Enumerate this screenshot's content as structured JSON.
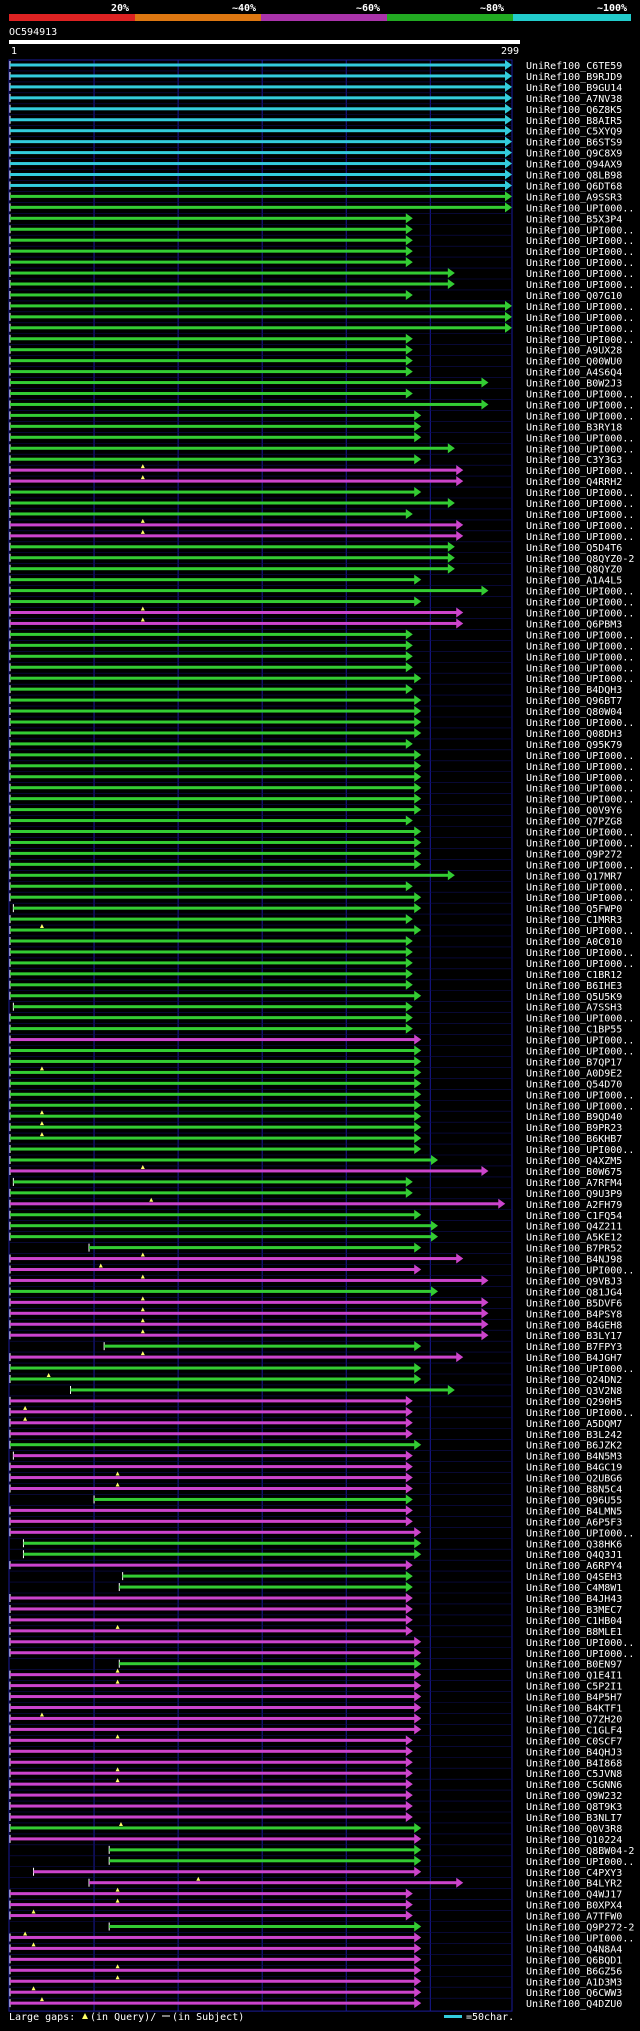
{
  "query_id": "OC594913",
  "ruler": {
    "start": "1",
    "end": "299"
  },
  "scale_ticks": [
    "20%",
    "~40%",
    "~60%",
    "~80%",
    "~100%"
  ],
  "identity_bands": [
    {
      "color": "#dd2222"
    },
    {
      "color": "#dd7711"
    },
    {
      "color": "#aa33aa"
    },
    {
      "color": "#22aa22"
    },
    {
      "color": "#22cccc"
    }
  ],
  "legend": {
    "gaps_label": "Large gaps:",
    "in_query": "(in Query)/",
    "in_subject": "(in Subject)",
    "scale_text": "=50char."
  },
  "colors": {
    "cyan": "#33ccdd",
    "green": "#33cc33",
    "magenta": "#cc44cc",
    "grid": "#1a1a99"
  },
  "hits": [
    {
      "label": "UniRef100_C6TE59",
      "color": "cyan",
      "s": 1,
      "e": 299
    },
    {
      "label": "UniRef100_B9RJD9",
      "color": "cyan",
      "s": 1,
      "e": 299
    },
    {
      "label": "UniRef100_B9GU14",
      "color": "cyan",
      "s": 1,
      "e": 299
    },
    {
      "label": "UniRef100_A7NV38",
      "color": "cyan",
      "s": 1,
      "e": 299
    },
    {
      "label": "UniRef100_Q6Z8K5",
      "color": "cyan",
      "s": 1,
      "e": 299
    },
    {
      "label": "UniRef100_B8AIR5",
      "color": "cyan",
      "s": 1,
      "e": 299
    },
    {
      "label": "UniRef100_C5XYQ9",
      "color": "cyan",
      "s": 1,
      "e": 299
    },
    {
      "label": "UniRef100_B6STS9",
      "color": "cyan",
      "s": 1,
      "e": 299
    },
    {
      "label": "UniRef100_Q9C8X9",
      "color": "cyan",
      "s": 1,
      "e": 299
    },
    {
      "label": "UniRef100_Q94AX9",
      "color": "cyan",
      "s": 1,
      "e": 299
    },
    {
      "label": "UniRef100_Q8LB98",
      "color": "cyan",
      "s": 1,
      "e": 299
    },
    {
      "label": "UniRef100_Q6DT68",
      "color": "cyan",
      "s": 1,
      "e": 299
    },
    {
      "label": "UniRef100_A9SSR3",
      "color": "green",
      "s": 1,
      "e": 299
    },
    {
      "label": "UniRef100_UPI000..",
      "color": "green",
      "s": 1,
      "e": 299
    },
    {
      "label": "UniRef100_B5X3P4",
      "color": "green",
      "s": 1,
      "e": 240
    },
    {
      "label": "UniRef100_UPI000..",
      "color": "green",
      "s": 1,
      "e": 240
    },
    {
      "label": "UniRef100_UPI000..",
      "color": "green",
      "s": 1,
      "e": 240
    },
    {
      "label": "UniRef100_UPI000..",
      "color": "green",
      "s": 1,
      "e": 240
    },
    {
      "label": "UniRef100_UPI000..",
      "color": "green",
      "s": 1,
      "e": 240
    },
    {
      "label": "UniRef100_UPI000..",
      "color": "green",
      "s": 1,
      "e": 265
    },
    {
      "label": "UniRef100_UPI000..",
      "color": "green",
      "s": 1,
      "e": 265
    },
    {
      "label": "UniRef100_Q07G10",
      "color": "green",
      "s": 1,
      "e": 240
    },
    {
      "label": "UniRef100_UPI000..",
      "color": "green",
      "s": 1,
      "e": 299
    },
    {
      "label": "UniRef100_UPI000..",
      "color": "green",
      "s": 1,
      "e": 299
    },
    {
      "label": "UniRef100_UPI000..",
      "color": "green",
      "s": 1,
      "e": 299
    },
    {
      "label": "UniRef100_UPI000..",
      "color": "green",
      "s": 1,
      "e": 240
    },
    {
      "label": "UniRef100_A9UX28",
      "color": "green",
      "s": 1,
      "e": 240
    },
    {
      "label": "UniRef100_Q00WU0",
      "color": "green",
      "s": 1,
      "e": 240
    },
    {
      "label": "UniRef100_A4S6Q4",
      "color": "green",
      "s": 1,
      "e": 240
    },
    {
      "label": "UniRef100_B0W2J3",
      "color": "green",
      "s": 1,
      "e": 285
    },
    {
      "label": "UniRef100_UPI000..",
      "color": "green",
      "s": 1,
      "e": 240
    },
    {
      "label": "UniRef100_UPI000..",
      "color": "green",
      "s": 1,
      "e": 285
    },
    {
      "label": "UniRef100_UPI000..",
      "color": "green",
      "s": 1,
      "e": 245
    },
    {
      "label": "UniRef100_B3RY18",
      "color": "green",
      "s": 1,
      "e": 245
    },
    {
      "label": "UniRef100_UPI000..",
      "color": "green",
      "s": 1,
      "e": 245
    },
    {
      "label": "UniRef100_UPI000..",
      "color": "green",
      "s": 1,
      "e": 265
    },
    {
      "label": "UniRef100_C3Y3G3",
      "color": "green",
      "s": 1,
      "e": 245
    },
    {
      "label": "UniRef100_UPI000..",
      "color": "magenta",
      "s": 1,
      "e": 270,
      "gap": 80
    },
    {
      "label": "UniRef100_Q4RRH2",
      "color": "magenta",
      "s": 1,
      "e": 270,
      "gap": 80
    },
    {
      "label": "UniRef100_UPI000..",
      "color": "green",
      "s": 1,
      "e": 245
    },
    {
      "label": "UniRef100_UPI000..",
      "color": "green",
      "s": 1,
      "e": 265
    },
    {
      "label": "UniRef100_UPI000..",
      "color": "green",
      "s": 1,
      "e": 240
    },
    {
      "label": "UniRef100_UPI000..",
      "color": "magenta",
      "s": 1,
      "e": 270,
      "gap": 80
    },
    {
      "label": "UniRef100_UPI000..",
      "color": "magenta",
      "s": 1,
      "e": 270,
      "gap": 80
    },
    {
      "label": "UniRef100_Q5D4T6",
      "color": "green",
      "s": 1,
      "e": 265
    },
    {
      "label": "UniRef100_Q8QYZ0-2",
      "color": "green",
      "s": 1,
      "e": 265
    },
    {
      "label": "UniRef100_Q8QYZ0",
      "color": "green",
      "s": 1,
      "e": 265
    },
    {
      "label": "UniRef100_A1A4L5",
      "color": "green",
      "s": 1,
      "e": 245
    },
    {
      "label": "UniRef100_UPI000..",
      "color": "green",
      "s": 1,
      "e": 285
    },
    {
      "label": "UniRef100_UPI000..",
      "color": "green",
      "s": 1,
      "e": 245
    },
    {
      "label": "UniRef100_UPI000..",
      "color": "magenta",
      "s": 1,
      "e": 270,
      "gap": 80
    },
    {
      "label": "UniRef100_Q6PBM3",
      "color": "magenta",
      "s": 1,
      "e": 270,
      "gap": 80
    },
    {
      "label": "UniRef100_UPI000..",
      "color": "green",
      "s": 1,
      "e": 240
    },
    {
      "label": "UniRef100_UPI000..",
      "color": "green",
      "s": 1,
      "e": 240
    },
    {
      "label": "UniRef100_UPI000..",
      "color": "green",
      "s": 1,
      "e": 240
    },
    {
      "label": "UniRef100_UPI000..",
      "color": "green",
      "s": 1,
      "e": 240
    },
    {
      "label": "UniRef100_UPI000..",
      "color": "green",
      "s": 1,
      "e": 245
    },
    {
      "label": "UniRef100_B4DQH3",
      "color": "green",
      "s": 1,
      "e": 240
    },
    {
      "label": "UniRef100_Q96BT7",
      "color": "green",
      "s": 1,
      "e": 245
    },
    {
      "label": "UniRef100_Q80W04",
      "color": "green",
      "s": 1,
      "e": 245
    },
    {
      "label": "UniRef100_UPI000..",
      "color": "green",
      "s": 1,
      "e": 245
    },
    {
      "label": "UniRef100_Q08DH3",
      "color": "green",
      "s": 1,
      "e": 245
    },
    {
      "label": "UniRef100_Q95K79",
      "color": "green",
      "s": 1,
      "e": 240
    },
    {
      "label": "UniRef100_UPI000..",
      "color": "green",
      "s": 1,
      "e": 245
    },
    {
      "label": "UniRef100_UPI000..",
      "color": "green",
      "s": 1,
      "e": 245
    },
    {
      "label": "UniRef100_UPI000..",
      "color": "green",
      "s": 1,
      "e": 245
    },
    {
      "label": "UniRef100_UPI000..",
      "color": "green",
      "s": 1,
      "e": 245
    },
    {
      "label": "UniRef100_UPI000..",
      "color": "green",
      "s": 1,
      "e": 245
    },
    {
      "label": "UniRef100_Q0V9Y6",
      "color": "green",
      "s": 1,
      "e": 245
    },
    {
      "label": "UniRef100_Q7PZG8",
      "color": "green",
      "s": 1,
      "e": 240
    },
    {
      "label": "UniRef100_UPI000..",
      "color": "green",
      "s": 1,
      "e": 245
    },
    {
      "label": "UniRef100_UPI000..",
      "color": "green",
      "s": 1,
      "e": 245
    },
    {
      "label": "UniRef100_Q9P272",
      "color": "green",
      "s": 1,
      "e": 245
    },
    {
      "label": "UniRef100_UPI000..",
      "color": "green",
      "s": 1,
      "e": 245
    },
    {
      "label": "UniRef100_Q17MR7",
      "color": "green",
      "s": 1,
      "e": 265
    },
    {
      "label": "UniRef100_UPI000..",
      "color": "green",
      "s": 1,
      "e": 240
    },
    {
      "label": "UniRef100_UPI000..",
      "color": "green",
      "s": 1,
      "e": 245
    },
    {
      "label": "UniRef100_Q5FWP0",
      "color": "green",
      "s": 3,
      "e": 245
    },
    {
      "label": "UniRef100_C1MRR3",
      "color": "green",
      "s": 1,
      "e": 240
    },
    {
      "label": "UniRef100_UPI000..",
      "color": "green",
      "s": 1,
      "e": 245,
      "gap": 20
    },
    {
      "label": "UniRef100_A0C010",
      "color": "green",
      "s": 1,
      "e": 240
    },
    {
      "label": "UniRef100_UPI000..",
      "color": "green",
      "s": 1,
      "e": 240
    },
    {
      "label": "UniRef100_UPI000..",
      "color": "green",
      "s": 1,
      "e": 240
    },
    {
      "label": "UniRef100_C1BR12",
      "color": "green",
      "s": 1,
      "e": 240
    },
    {
      "label": "UniRef100_B6IHE3",
      "color": "green",
      "s": 1,
      "e": 240
    },
    {
      "label": "UniRef100_Q5U5K9",
      "color": "green",
      "s": 1,
      "e": 245
    },
    {
      "label": "UniRef100_A7SSH3",
      "color": "green",
      "s": 3,
      "e": 240
    },
    {
      "label": "UniRef100_UPI000..",
      "color": "green",
      "s": 1,
      "e": 240
    },
    {
      "label": "UniRef100_C1BP55",
      "color": "green",
      "s": 1,
      "e": 240
    },
    {
      "label": "UniRef100_UPI000..",
      "color": "magenta",
      "s": 1,
      "e": 245
    },
    {
      "label": "UniRef100_UPI000..",
      "color": "green",
      "s": 1,
      "e": 245
    },
    {
      "label": "UniRef100_B7QP17",
      "color": "green",
      "s": 1,
      "e": 245
    },
    {
      "label": "UniRef100_A0D9E2",
      "color": "green",
      "s": 1,
      "e": 245,
      "gap": 20
    },
    {
      "label": "UniRef100_Q54D70",
      "color": "green",
      "s": 1,
      "e": 245
    },
    {
      "label": "UniRef100_UPI000..",
      "color": "green",
      "s": 1,
      "e": 245
    },
    {
      "label": "UniRef100_UPI000..",
      "color": "green",
      "s": 1,
      "e": 245
    },
    {
      "label": "UniRef100_B9QD40",
      "color": "green",
      "s": 1,
      "e": 245,
      "gap": 20
    },
    {
      "label": "UniRef100_B9PR23",
      "color": "green",
      "s": 1,
      "e": 245,
      "gap": 20
    },
    {
      "label": "UniRef100_B6KHB7",
      "color": "green",
      "s": 1,
      "e": 245,
      "gap": 20
    },
    {
      "label": "UniRef100_UPI000..",
      "color": "green",
      "s": 1,
      "e": 245
    },
    {
      "label": "UniRef100_Q4XZM5",
      "color": "green",
      "s": 1,
      "e": 255
    },
    {
      "label": "UniRef100_B0W675",
      "color": "magenta",
      "s": 1,
      "e": 285,
      "gap": 80
    },
    {
      "label": "UniRef100_A7RFM4",
      "color": "green",
      "s": 3,
      "e": 240
    },
    {
      "label": "UniRef100_Q9U3P9",
      "color": "green",
      "s": 1,
      "e": 240
    },
    {
      "label": "UniRef100_A2FH79",
      "color": "magenta",
      "s": 1,
      "e": 295,
      "gap": 85
    },
    {
      "label": "UniRef100_C1FQ54",
      "color": "green",
      "s": 1,
      "e": 245
    },
    {
      "label": "UniRef100_Q4Z211",
      "color": "green",
      "s": 1,
      "e": 255
    },
    {
      "label": "UniRef100_A5KE12",
      "color": "green",
      "s": 1,
      "e": 255
    },
    {
      "label": "UniRef100_B7PR52",
      "color": "green",
      "s": 48,
      "e": 245
    },
    {
      "label": "UniRef100_B4NJ98",
      "color": "magenta",
      "s": 1,
      "e": 270,
      "gap": 80
    },
    {
      "label": "UniRef100_UPI000..",
      "color": "magenta",
      "s": 1,
      "e": 245,
      "gap": 55
    },
    {
      "label": "UniRef100_Q9VBJ3",
      "color": "magenta",
      "s": 1,
      "e": 285,
      "gap": 80
    },
    {
      "label": "UniRef100_Q81JG4",
      "color": "green",
      "s": 1,
      "e": 255
    },
    {
      "label": "UniRef100_B5DVF6",
      "color": "magenta",
      "s": 1,
      "e": 285,
      "gap": 80
    },
    {
      "label": "UniRef100_B4PSY8",
      "color": "magenta",
      "s": 1,
      "e": 285,
      "gap": 80
    },
    {
      "label": "UniRef100_B4GEH8",
      "color": "magenta",
      "s": 1,
      "e": 285,
      "gap": 80
    },
    {
      "label": "UniRef100_B3LY17",
      "color": "magenta",
      "s": 1,
      "e": 285,
      "gap": 80
    },
    {
      "label": "UniRef100_B7FPY3",
      "color": "green",
      "s": 57,
      "e": 245
    },
    {
      "label": "UniRef100_B4JGH7",
      "color": "magenta",
      "s": 1,
      "e": 270,
      "gap": 80
    },
    {
      "label": "UniRef100_UPI000..",
      "color": "green",
      "s": 1,
      "e": 245
    },
    {
      "label": "UniRef100_Q24DN2",
      "color": "green",
      "s": 1,
      "e": 245,
      "gap": 24
    },
    {
      "label": "UniRef100_Q3V2N8",
      "color": "green",
      "s": 37,
      "e": 265
    },
    {
      "label": "UniRef100_Q290H5",
      "color": "magenta",
      "s": 1,
      "e": 240
    },
    {
      "label": "UniRef100_UPI000..",
      "color": "magenta",
      "s": 1,
      "e": 240,
      "gap": 10
    },
    {
      "label": "UniRef100_A5DQM7",
      "color": "magenta",
      "s": 1,
      "e": 240,
      "gap": 10
    },
    {
      "label": "UniRef100_B3L242",
      "color": "magenta",
      "s": 1,
      "e": 240
    },
    {
      "label": "UniRef100_B6JZK2",
      "color": "green",
      "s": 1,
      "e": 245
    },
    {
      "label": "UniRef100_B4N5M3",
      "color": "magenta",
      "s": 3,
      "e": 240
    },
    {
      "label": "UniRef100_B4GC19",
      "color": "magenta",
      "s": 1,
      "e": 240
    },
    {
      "label": "UniRef100_Q2UBG6",
      "color": "magenta",
      "s": 1,
      "e": 240,
      "gap": 65
    },
    {
      "label": "UniRef100_B8N5C4",
      "color": "magenta",
      "s": 1,
      "e": 240,
      "gap": 65
    },
    {
      "label": "UniRef100_Q96U55",
      "color": "green",
      "s": 51,
      "e": 240
    },
    {
      "label": "UniRef100_B4LMN5",
      "color": "magenta",
      "s": 1,
      "e": 240
    },
    {
      "label": "UniRef100_A6P5F3",
      "color": "magenta",
      "s": 1,
      "e": 240
    },
    {
      "label": "UniRef100_UPI000..",
      "color": "magenta",
      "s": 1,
      "e": 245
    },
    {
      "label": "UniRef100_Q38HK6",
      "color": "green",
      "s": 9,
      "e": 245
    },
    {
      "label": "UniRef100_Q4Q3J1",
      "color": "green",
      "s": 9,
      "e": 245
    },
    {
      "label": "UniRef100_A6RPY4",
      "color": "magenta",
      "s": 1,
      "e": 240
    },
    {
      "label": "UniRef100_Q4SEH3",
      "color": "green",
      "s": 68,
      "e": 240
    },
    {
      "label": "UniRef100_C4M8W1",
      "color": "green",
      "s": 66,
      "e": 240
    },
    {
      "label": "UniRef100_B4JH43",
      "color": "magenta",
      "s": 1,
      "e": 240
    },
    {
      "label": "UniRef100_B3MEC7",
      "color": "magenta",
      "s": 1,
      "e": 240
    },
    {
      "label": "UniRef100_C1HB04",
      "color": "magenta",
      "s": 1,
      "e": 240
    },
    {
      "label": "UniRef100_B8MLE1",
      "color": "magenta",
      "s": 1,
      "e": 240,
      "gap": 65
    },
    {
      "label": "UniRef100_UPI000..",
      "color": "magenta",
      "s": 1,
      "e": 245
    },
    {
      "label": "UniRef100_UPI000..",
      "color": "magenta",
      "s": 1,
      "e": 245
    },
    {
      "label": "UniRef100_B0EN97",
      "color": "green",
      "s": 66,
      "e": 245
    },
    {
      "label": "UniRef100_Q1E4I1",
      "color": "magenta",
      "s": 1,
      "e": 245,
      "gap": 65
    },
    {
      "label": "UniRef100_C5P2I1",
      "color": "magenta",
      "s": 1,
      "e": 245,
      "gap": 65
    },
    {
      "label": "UniRef100_B4P5H7",
      "color": "magenta",
      "s": 1,
      "e": 245
    },
    {
      "label": "UniRef100_B4KTF1",
      "color": "magenta",
      "s": 1,
      "e": 245
    },
    {
      "label": "UniRef100_Q7ZH20",
      "color": "magenta",
      "s": 1,
      "e": 245,
      "gap": 20
    },
    {
      "label": "UniRef100_C1GLF4",
      "color": "magenta",
      "s": 1,
      "e": 245
    },
    {
      "label": "UniRef100_C0SCF7",
      "color": "magenta",
      "s": 1,
      "e": 240,
      "gap": 65
    },
    {
      "label": "UniRef100_B4QHJ3",
      "color": "magenta",
      "s": 1,
      "e": 240
    },
    {
      "label": "UniRef100_B4I868",
      "color": "magenta",
      "s": 1,
      "e": 240
    },
    {
      "label": "UniRef100_C5JVN8",
      "color": "magenta",
      "s": 1,
      "e": 240,
      "gap": 65
    },
    {
      "label": "UniRef100_C5GNN6",
      "color": "magenta",
      "s": 1,
      "e": 240,
      "gap": 65
    },
    {
      "label": "UniRef100_Q9W232",
      "color": "magenta",
      "s": 1,
      "e": 240
    },
    {
      "label": "UniRef100_Q8T9K3",
      "color": "magenta",
      "s": 1,
      "e": 240
    },
    {
      "label": "UniRef100_B3NLI7",
      "color": "magenta",
      "s": 1,
      "e": 240
    },
    {
      "label": "UniRef100_Q0V3R8",
      "color": "green",
      "s": 1,
      "e": 245,
      "gap": 67
    },
    {
      "label": "UniRef100_Q10224",
      "color": "magenta",
      "s": 1,
      "e": 245
    },
    {
      "label": "UniRef100_Q8BW04-2",
      "color": "green",
      "s": 60,
      "e": 245
    },
    {
      "label": "UniRef100_UPI000..",
      "color": "green",
      "s": 60,
      "e": 245
    },
    {
      "label": "UniRef100_C4PXY3",
      "color": "magenta",
      "s": 15,
      "e": 245
    },
    {
      "label": "UniRef100_B4LYR2",
      "color": "magenta",
      "s": 48,
      "e": 270,
      "gap": 113
    },
    {
      "label": "UniRef100_Q4WJ17",
      "color": "magenta",
      "s": 1,
      "e": 240,
      "gap": 65
    },
    {
      "label": "UniRef100_B0XPX4",
      "color": "magenta",
      "s": 1,
      "e": 240,
      "gap": 65
    },
    {
      "label": "UniRef100_A7TFW0",
      "color": "magenta",
      "s": 1,
      "e": 240,
      "gap": 15
    },
    {
      "label": "UniRef100_Q9P272-2",
      "color": "green",
      "s": 60,
      "e": 245
    },
    {
      "label": "UniRef100_UPI000..",
      "color": "magenta",
      "s": 1,
      "e": 245,
      "gap": 10
    },
    {
      "label": "UniRef100_Q4N8A4",
      "color": "magenta",
      "s": 1,
      "e": 245,
      "gap": 15
    },
    {
      "label": "UniRef100_Q6BQD1",
      "color": "magenta",
      "s": 1,
      "e": 245
    },
    {
      "label": "UniRef100_B6GZ56",
      "color": "magenta",
      "s": 1,
      "e": 245,
      "gap": 65
    },
    {
      "label": "UniRef100_A1D3M3",
      "color": "magenta",
      "s": 1,
      "e": 245,
      "gap": 65
    },
    {
      "label": "UniRef100_Q6CWW3",
      "color": "magenta",
      "s": 1,
      "e": 245,
      "gap": 15
    },
    {
      "label": "UniRef100_Q4DZU0",
      "color": "magenta",
      "s": 1,
      "e": 245,
      "gap": 20
    }
  ]
}
